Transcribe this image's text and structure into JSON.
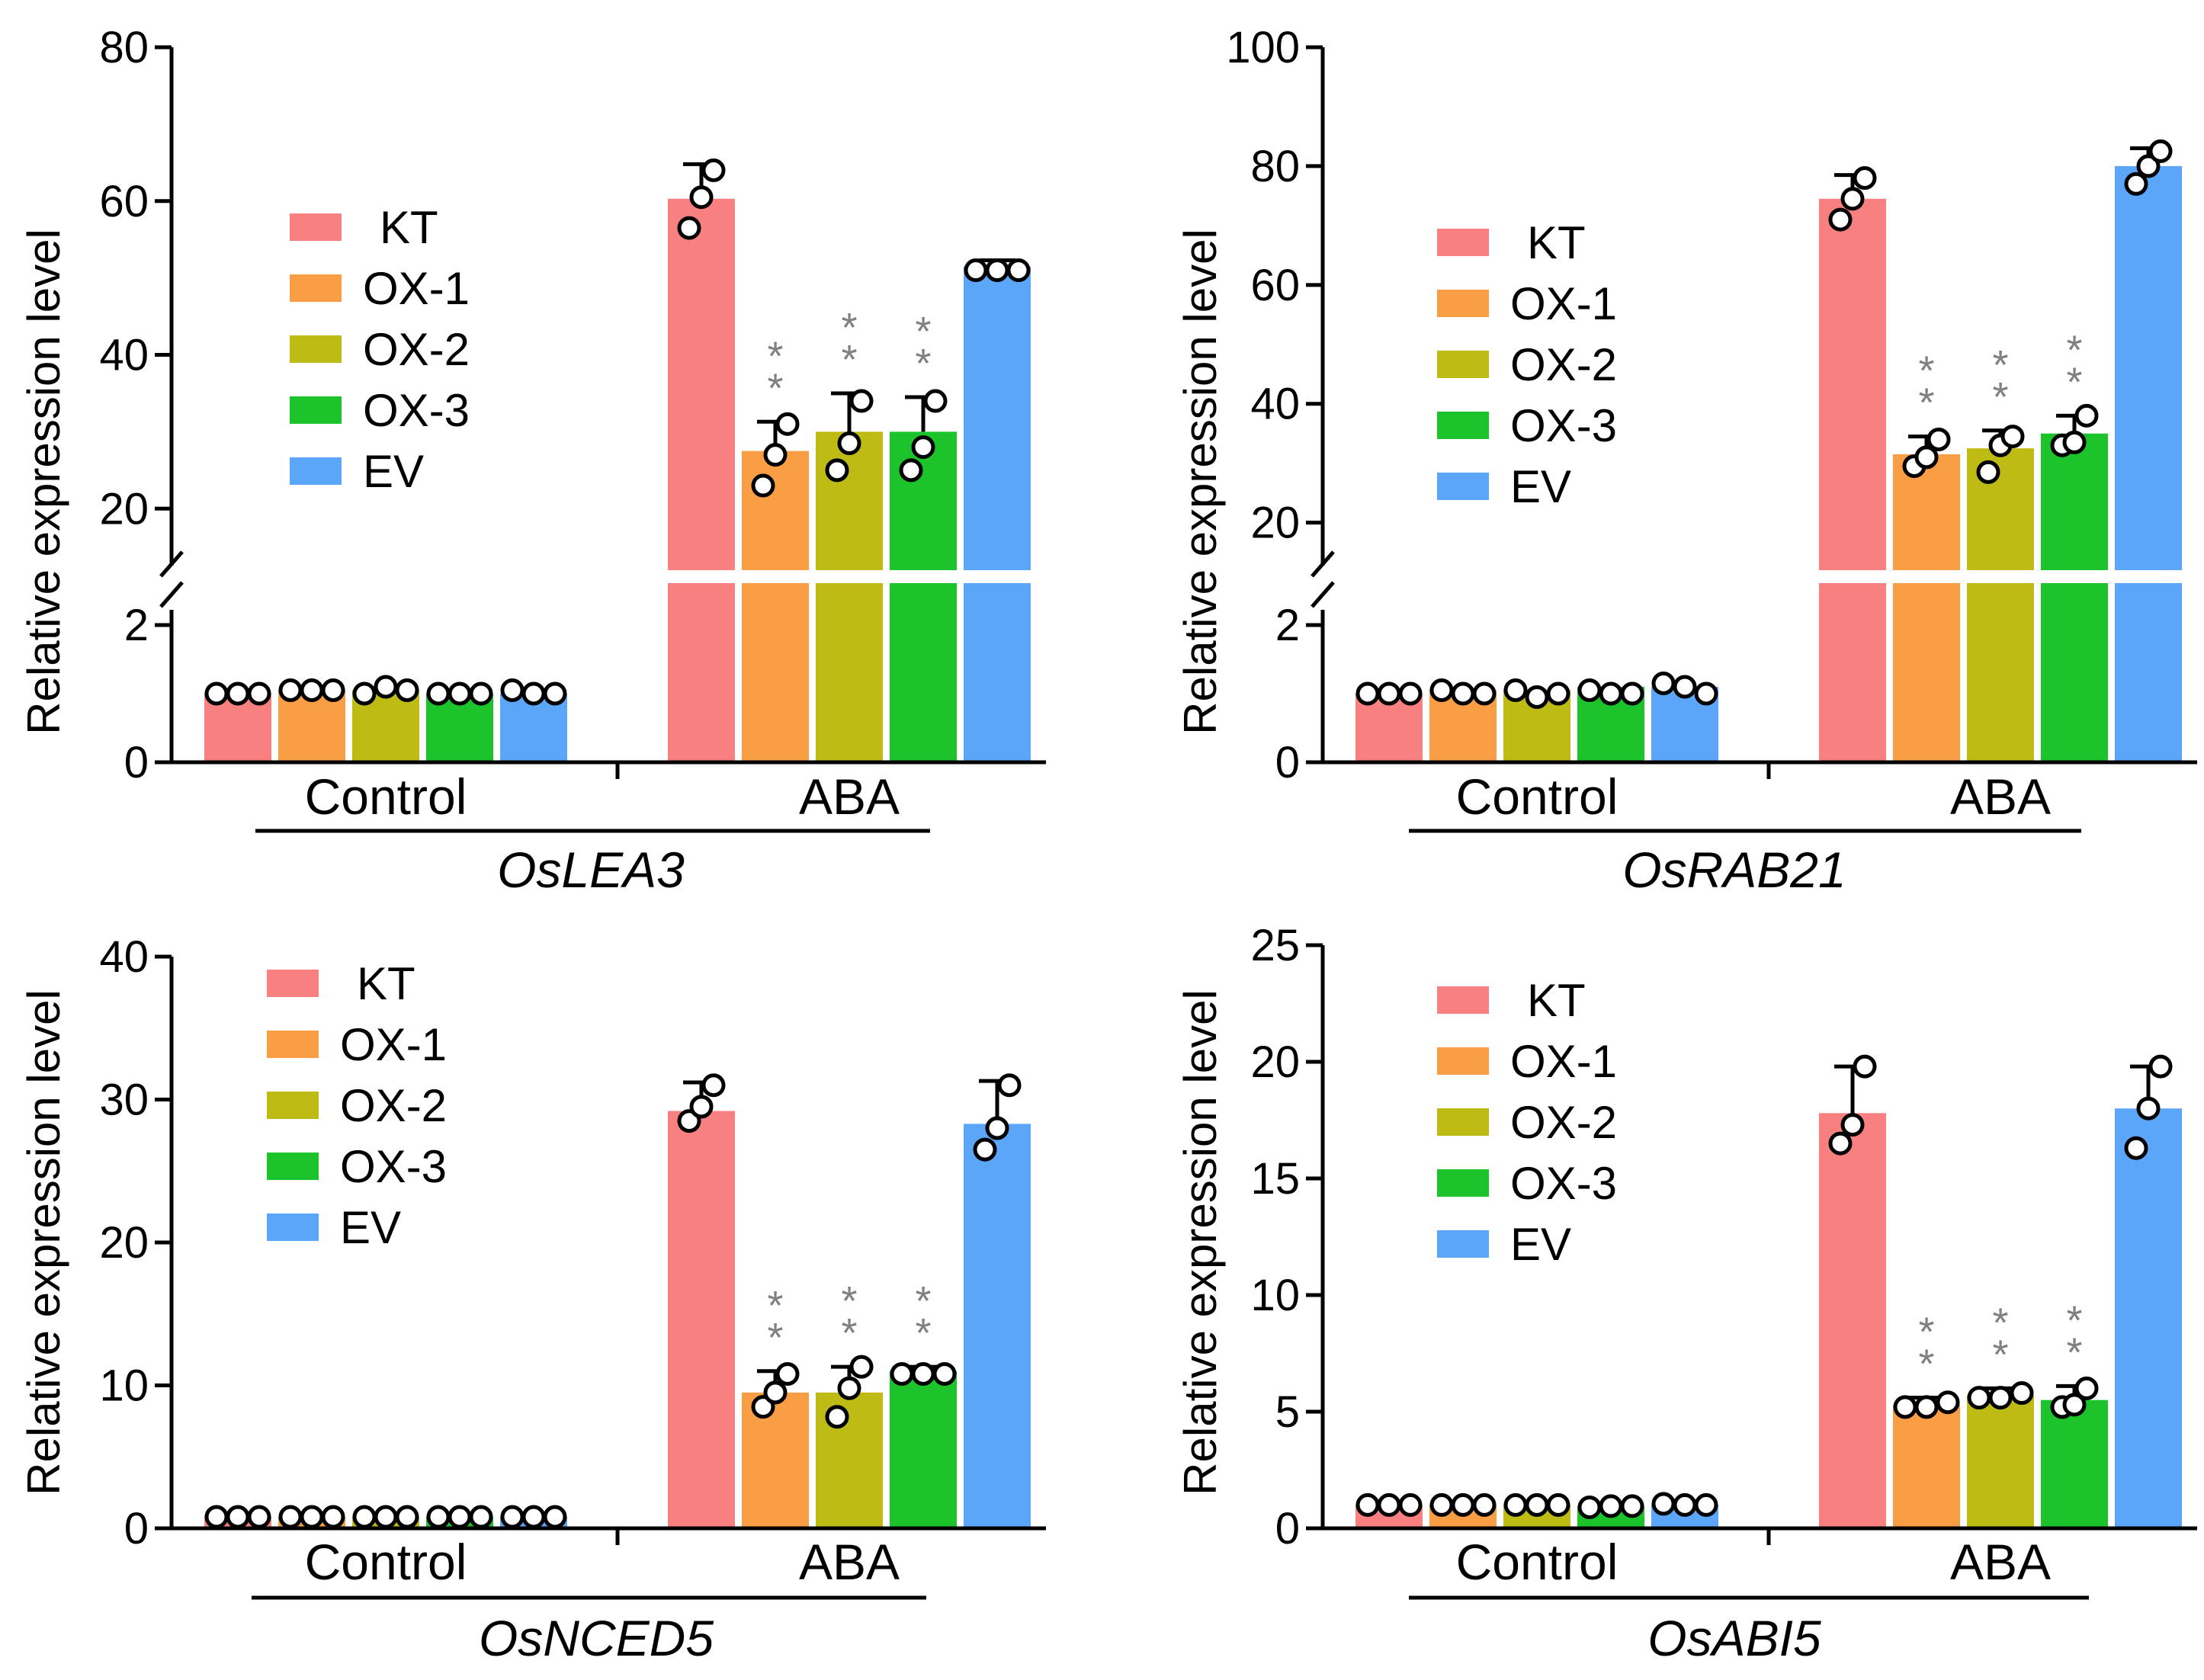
{
  "chart_data": [
    {
      "type": "bar",
      "gene": "OsLEA3",
      "ylabel": "Relative expression level",
      "groups": [
        "Control",
        "ABA"
      ],
      "legend": [
        "KT",
        "OX-1",
        "OX-2",
        "OX-3",
        "EV"
      ],
      "colors": [
        "#F98080",
        "#FA9E46",
        "#BDBB14",
        "#1DC32A",
        "#5BA6F8"
      ],
      "axis_break": true,
      "lower_range": [
        0,
        2
      ],
      "lower_ticks": [
        "0",
        "2"
      ],
      "upper_range": [
        12,
        80
      ],
      "upper_ticks": [
        "20",
        "40",
        "60",
        "80"
      ],
      "series": [
        {
          "name": "KT",
          "values": [
            1.0,
            60.3
          ],
          "error": [
            0,
            4.5
          ],
          "points": [
            [
              1.0,
              1.0,
              1.0
            ],
            [
              56.5,
              60.5,
              64.0
            ]
          ],
          "significance": [
            "",
            ""
          ]
        },
        {
          "name": "OX-1",
          "values": [
            1.05,
            27.5
          ],
          "error": [
            0,
            3.8
          ],
          "points": [
            [
              1.05,
              1.05,
              1.05
            ],
            [
              23.0,
              27.0,
              31.0
            ]
          ],
          "significance": [
            "",
            "**"
          ]
        },
        {
          "name": "OX-2",
          "values": [
            1.05,
            30.0
          ],
          "error": [
            0,
            5.0
          ],
          "points": [
            [
              1.0,
              1.1,
              1.05
            ],
            [
              25.0,
              28.5,
              34.0
            ]
          ],
          "significance": [
            "",
            "**"
          ]
        },
        {
          "name": "OX-3",
          "values": [
            1.0,
            30.0
          ],
          "error": [
            0,
            4.5
          ],
          "points": [
            [
              1.0,
              1.0,
              1.0
            ],
            [
              25.0,
              28.0,
              34.0
            ]
          ],
          "significance": [
            "",
            "**"
          ]
        },
        {
          "name": "EV",
          "values": [
            1.0,
            51.5
          ],
          "error": [
            0,
            0.8
          ],
          "points": [
            [
              1.05,
              1.0,
              1.0
            ],
            [
              51.0,
              51.0,
              51.0
            ]
          ],
          "significance": [
            "",
            ""
          ]
        }
      ]
    },
    {
      "type": "bar",
      "gene": "OsRAB21",
      "ylabel": "Relative expression level",
      "groups": [
        "Control",
        "ABA"
      ],
      "legend": [
        "KT",
        "OX-1",
        "OX-2",
        "OX-3",
        "EV"
      ],
      "colors": [
        "#F98080",
        "#FA9E46",
        "#BDBB14",
        "#1DC32A",
        "#5BA6F8"
      ],
      "axis_break": true,
      "lower_range": [
        0,
        2
      ],
      "lower_ticks": [
        "0",
        "2"
      ],
      "upper_range": [
        12,
        100
      ],
      "upper_ticks": [
        "20",
        "40",
        "60",
        "80",
        "100"
      ],
      "series": [
        {
          "name": "KT",
          "values": [
            1.0,
            74.5
          ],
          "error": [
            0,
            4.0
          ],
          "points": [
            [
              1.0,
              1.0,
              1.0
            ],
            [
              71.0,
              74.5,
              78.0
            ]
          ],
          "significance": [
            "",
            ""
          ]
        },
        {
          "name": "OX-1",
          "values": [
            1.05,
            31.5
          ],
          "error": [
            0,
            3.0
          ],
          "points": [
            [
              1.05,
              1.0,
              1.0
            ],
            [
              29.5,
              31.0,
              34.0
            ]
          ],
          "significance": [
            "",
            "**"
          ]
        },
        {
          "name": "OX-2",
          "values": [
            1.05,
            32.5
          ],
          "error": [
            0,
            3.0
          ],
          "points": [
            [
              1.05,
              0.95,
              1.0
            ],
            [
              28.5,
              33.0,
              34.5
            ]
          ],
          "significance": [
            "",
            "**"
          ]
        },
        {
          "name": "OX-3",
          "values": [
            1.1,
            35.0
          ],
          "error": [
            0,
            3.0
          ],
          "points": [
            [
              1.05,
              1.0,
              1.0
            ],
            [
              33.0,
              33.5,
              38.0
            ]
          ],
          "significance": [
            "",
            "**"
          ]
        },
        {
          "name": "EV",
          "values": [
            1.1,
            80.0
          ],
          "error": [
            0,
            3.0
          ],
          "points": [
            [
              1.15,
              1.1,
              1.0
            ],
            [
              77.0,
              80.0,
              82.5
            ]
          ],
          "significance": [
            "",
            ""
          ]
        }
      ]
    },
    {
      "type": "bar",
      "gene": "OsNCED5",
      "ylabel": "Relative expression level",
      "groups": [
        "Control",
        "ABA"
      ],
      "legend": [
        "KT",
        "OX-1",
        "OX-2",
        "OX-3",
        "EV"
      ],
      "colors": [
        "#F98080",
        "#FA9E46",
        "#BDBB14",
        "#1DC32A",
        "#5BA6F8"
      ],
      "axis_break": false,
      "ylim": [
        0,
        40
      ],
      "yticks": [
        "0",
        "10",
        "20",
        "30",
        "40"
      ],
      "series": [
        {
          "name": "KT",
          "values": [
            0.8,
            29.2
          ],
          "error": [
            0,
            2.0
          ],
          "points": [
            [
              0.8,
              0.8,
              0.8
            ],
            [
              28.5,
              29.5,
              31.0
            ]
          ],
          "significance": [
            "",
            ""
          ]
        },
        {
          "name": "OX-1",
          "values": [
            0.8,
            9.5
          ],
          "error": [
            0,
            1.5
          ],
          "points": [
            [
              0.8,
              0.8,
              0.8
            ],
            [
              8.5,
              9.5,
              10.8
            ]
          ],
          "significance": [
            "",
            "**"
          ]
        },
        {
          "name": "OX-2",
          "values": [
            0.8,
            9.5
          ],
          "error": [
            0,
            1.8
          ],
          "points": [
            [
              0.8,
              0.8,
              0.8
            ],
            [
              7.8,
              9.8,
              11.3
            ]
          ],
          "significance": [
            "",
            "**"
          ]
        },
        {
          "name": "OX-3",
          "values": [
            0.8,
            11.0
          ],
          "error": [
            0,
            0.3
          ],
          "points": [
            [
              0.8,
              0.8,
              0.8
            ],
            [
              10.8,
              10.8,
              10.8
            ]
          ],
          "significance": [
            "",
            "**"
          ]
        },
        {
          "name": "EV",
          "values": [
            0.8,
            28.3
          ],
          "error": [
            0,
            3.0
          ],
          "points": [
            [
              0.8,
              0.8,
              0.8
            ],
            [
              26.5,
              28.0,
              31.0
            ]
          ],
          "significance": [
            "",
            ""
          ]
        }
      ]
    },
    {
      "type": "bar",
      "gene": "OsABI5",
      "ylabel": "Relative expression level",
      "groups": [
        "Control",
        "ABA"
      ],
      "legend": [
        "KT",
        "OX-1",
        "OX-2",
        "OX-3",
        "EV"
      ],
      "colors": [
        "#F98080",
        "#FA9E46",
        "#BDBB14",
        "#1DC32A",
        "#5BA6F8"
      ],
      "axis_break": false,
      "ylim": [
        0,
        25
      ],
      "yticks": [
        "0",
        "5",
        "10",
        "15",
        "20",
        "25"
      ],
      "series": [
        {
          "name": "KT",
          "values": [
            1.0,
            17.8
          ],
          "error": [
            0,
            2.0
          ],
          "points": [
            [
              1.0,
              1.0,
              1.0
            ],
            [
              16.5,
              17.3,
              19.8
            ]
          ],
          "significance": [
            "",
            ""
          ]
        },
        {
          "name": "OX-1",
          "values": [
            1.0,
            5.3
          ],
          "error": [
            0,
            0.3
          ],
          "points": [
            [
              1.0,
              1.0,
              1.0
            ],
            [
              5.2,
              5.2,
              5.4
            ]
          ],
          "significance": [
            "",
            "**"
          ]
        },
        {
          "name": "OX-2",
          "values": [
            1.0,
            5.7
          ],
          "error": [
            0,
            0.3
          ],
          "points": [
            [
              1.0,
              1.0,
              1.0
            ],
            [
              5.6,
              5.6,
              5.8
            ]
          ],
          "significance": [
            "",
            "**"
          ]
        },
        {
          "name": "OX-3",
          "values": [
            0.95,
            5.5
          ],
          "error": [
            0,
            0.6
          ],
          "points": [
            [
              0.9,
              0.95,
              0.95
            ],
            [
              5.2,
              5.3,
              6.0
            ]
          ],
          "significance": [
            "",
            "**"
          ]
        },
        {
          "name": "EV",
          "values": [
            1.0,
            18.0
          ],
          "error": [
            0,
            1.8
          ],
          "points": [
            [
              1.05,
              1.0,
              1.0
            ],
            [
              16.3,
              18.0,
              19.8
            ]
          ],
          "significance": [
            "",
            ""
          ]
        }
      ]
    }
  ]
}
